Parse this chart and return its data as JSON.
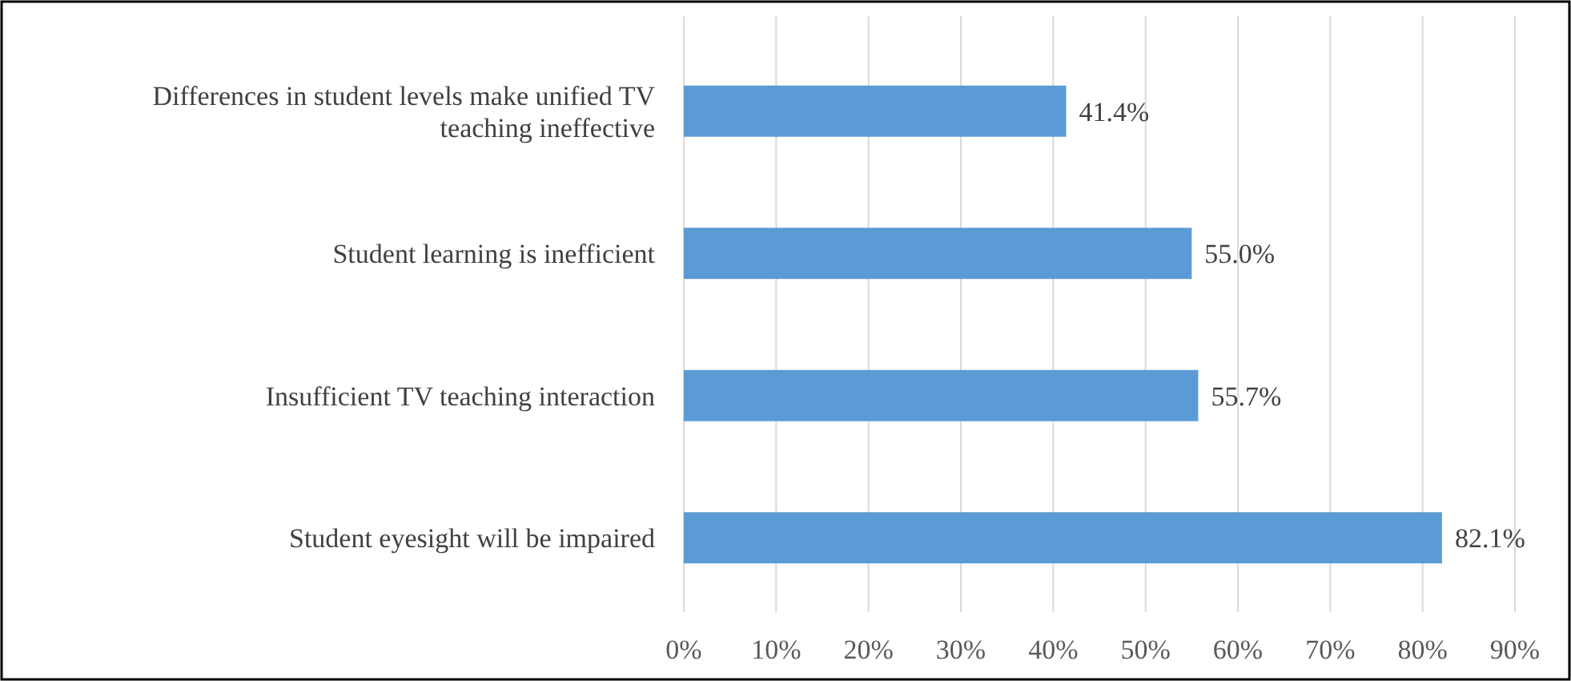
{
  "chart_data": {
    "type": "bar",
    "orientation": "horizontal",
    "categories": [
      "Differences in student levels make unified TV teaching ineffective",
      "Student learning is inefficient",
      "Insufficient TV teaching interaction",
      "Student eyesight will be impaired"
    ],
    "values": [
      41.4,
      55.0,
      55.7,
      82.1
    ],
    "value_labels": [
      "41.4%",
      "55.0%",
      "55.7%",
      "82.1%"
    ],
    "color": "#5b9bd5",
    "xlim": [
      0,
      90
    ],
    "xticks": [
      {
        "value": 0,
        "label": "0%"
      },
      {
        "value": 10,
        "label": "10%"
      },
      {
        "value": 20,
        "label": "20%"
      },
      {
        "value": 30,
        "label": "30%"
      },
      {
        "value": 40,
        "label": "40%"
      },
      {
        "value": 50,
        "label": "50%"
      },
      {
        "value": 60,
        "label": "60%"
      },
      {
        "value": 70,
        "label": "70%"
      },
      {
        "value": 80,
        "label": "80%"
      },
      {
        "value": 90,
        "label": "90%"
      }
    ],
    "grid": "x"
  }
}
